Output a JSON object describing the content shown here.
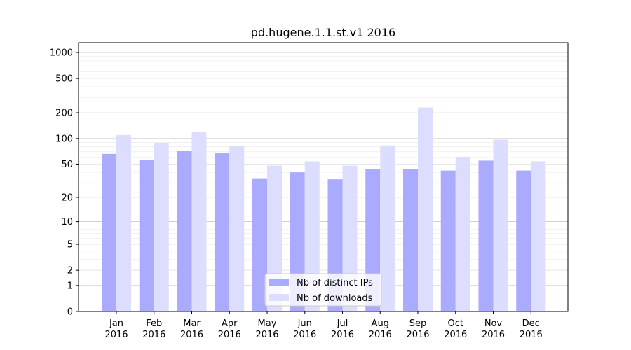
{
  "chart_data": {
    "type": "bar",
    "title": "pd.hugene.1.1.st.v1 2016",
    "xlabel": "",
    "ylabel": "",
    "categories": [
      [
        "Jan",
        "2016"
      ],
      [
        "Feb",
        "2016"
      ],
      [
        "Mar",
        "2016"
      ],
      [
        "Apr",
        "2016"
      ],
      [
        "May",
        "2016"
      ],
      [
        "Jun",
        "2016"
      ],
      [
        "Jul",
        "2016"
      ],
      [
        "Aug",
        "2016"
      ],
      [
        "Sep",
        "2016"
      ],
      [
        "Oct",
        "2016"
      ],
      [
        "Nov",
        "2016"
      ],
      [
        "Dec",
        "2016"
      ]
    ],
    "series": [
      {
        "name": "Nb of distinct IPs",
        "color": "#aaaaff",
        "values": [
          66,
          56,
          71,
          67,
          34,
          40,
          33,
          44,
          44,
          42,
          55,
          42
        ]
      },
      {
        "name": "Nb of downloads",
        "color": "#ddddff",
        "values": [
          110,
          89,
          119,
          82,
          48,
          54,
          48,
          83,
          230,
          61,
          97,
          54
        ]
      }
    ],
    "y_scale": "symlog",
    "ylim": [
      0,
      1300
    ],
    "y_ticks": [
      0,
      1,
      2,
      5,
      10,
      20,
      50,
      100,
      200,
      500,
      1000
    ],
    "grid": true,
    "legend_position": "lower-center"
  }
}
